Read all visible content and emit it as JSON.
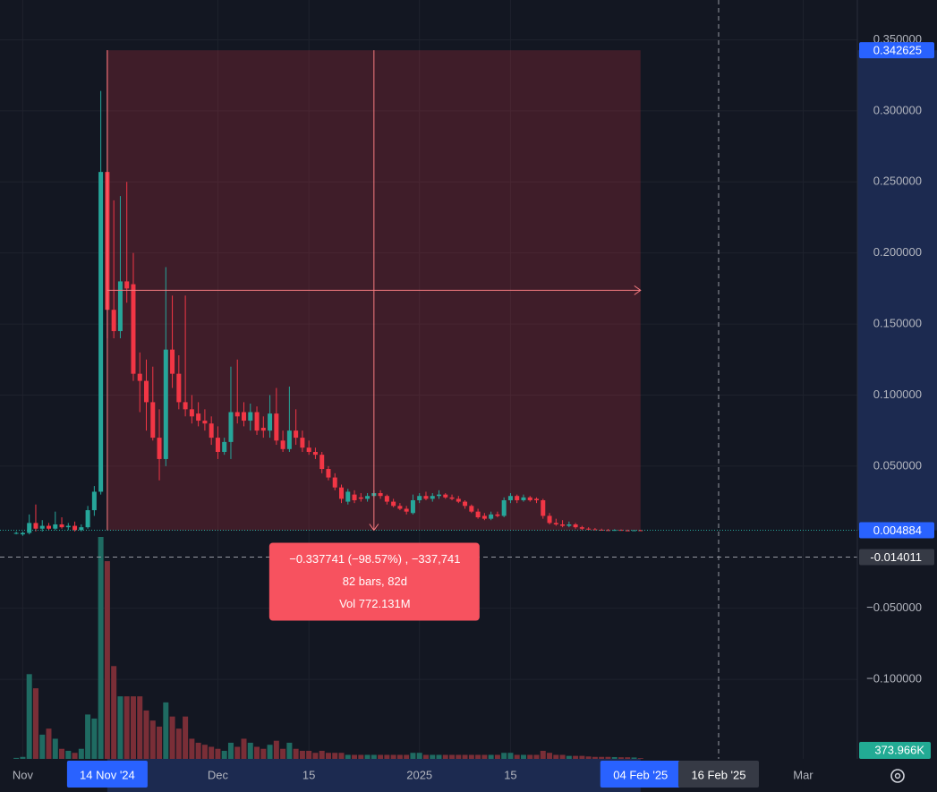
{
  "chart_data": {
    "type": "candlestick",
    "x": [
      "2024-10-31",
      "2024-11-01",
      "2024-11-02",
      "2024-11-03",
      "2024-11-04",
      "2024-11-05",
      "2024-11-06",
      "2024-11-07",
      "2024-11-08",
      "2024-11-09",
      "2024-11-10",
      "2024-11-11",
      "2024-11-12",
      "2024-11-13",
      "2024-11-14",
      "2024-11-15",
      "2024-11-16",
      "2024-11-17",
      "2024-11-18",
      "2024-11-19",
      "2024-11-20",
      "2024-11-21",
      "2024-11-22",
      "2024-11-23",
      "2024-11-24",
      "2024-11-25",
      "2024-11-26",
      "2024-11-27",
      "2024-11-28",
      "2024-11-29",
      "2024-11-30",
      "2024-12-01",
      "2024-12-02",
      "2024-12-03",
      "2024-12-04",
      "2024-12-05",
      "2024-12-06",
      "2024-12-07",
      "2024-12-08",
      "2024-12-09",
      "2024-12-10",
      "2024-12-11",
      "2024-12-12",
      "2024-12-13",
      "2024-12-14",
      "2024-12-15",
      "2024-12-16",
      "2024-12-17",
      "2024-12-18",
      "2024-12-19",
      "2024-12-20",
      "2024-12-21",
      "2024-12-22",
      "2024-12-23",
      "2024-12-24",
      "2024-12-25",
      "2024-12-26",
      "2024-12-27",
      "2024-12-28",
      "2024-12-29",
      "2024-12-30",
      "2024-12-31",
      "2025-01-01",
      "2025-01-02",
      "2025-01-03",
      "2025-01-04",
      "2025-01-05",
      "2025-01-06",
      "2025-01-07",
      "2025-01-08",
      "2025-01-09",
      "2025-01-10",
      "2025-01-11",
      "2025-01-12",
      "2025-01-13",
      "2025-01-14",
      "2025-01-15",
      "2025-01-16",
      "2025-01-17",
      "2025-01-18",
      "2025-01-19",
      "2025-01-20",
      "2025-01-21",
      "2025-01-22",
      "2025-01-23",
      "2025-01-24",
      "2025-01-25",
      "2025-01-26",
      "2025-01-27",
      "2025-01-28",
      "2025-01-29",
      "2025-01-30",
      "2025-01-31",
      "2025-02-01",
      "2025-02-02",
      "2025-02-03",
      "2025-02-04"
    ],
    "ohlc": [
      [
        0.003,
        0.004,
        0.002,
        0.003
      ],
      [
        0.002,
        0.004,
        0.001,
        0.003
      ],
      [
        0.003,
        0.016,
        0.002,
        0.01
      ],
      [
        0.01,
        0.023,
        0.004,
        0.006
      ],
      [
        0.006,
        0.012,
        0.004,
        0.008
      ],
      [
        0.008,
        0.01,
        0.005,
        0.006
      ],
      [
        0.006,
        0.018,
        0.005,
        0.009
      ],
      [
        0.009,
        0.014,
        0.006,
        0.007
      ],
      [
        0.007,
        0.01,
        0.005,
        0.008
      ],
      [
        0.008,
        0.011,
        0.004,
        0.005
      ],
      [
        0.005,
        0.009,
        0.004,
        0.007
      ],
      [
        0.007,
        0.022,
        0.006,
        0.019
      ],
      [
        0.019,
        0.036,
        0.015,
        0.032
      ],
      [
        0.032,
        0.314,
        0.03,
        0.257
      ],
      [
        0.257,
        0.342625,
        0.14,
        0.16
      ],
      [
        0.16,
        0.237,
        0.14,
        0.145
      ],
      [
        0.145,
        0.24,
        0.14,
        0.18
      ],
      [
        0.18,
        0.25,
        0.165,
        0.175
      ],
      [
        0.178,
        0.2,
        0.11,
        0.115
      ],
      [
        0.115,
        0.13,
        0.088,
        0.11
      ],
      [
        0.11,
        0.125,
        0.075,
        0.095
      ],
      [
        0.095,
        0.12,
        0.068,
        0.07
      ],
      [
        0.07,
        0.09,
        0.04,
        0.055
      ],
      [
        0.055,
        0.19,
        0.05,
        0.132
      ],
      [
        0.132,
        0.17,
        0.105,
        0.115
      ],
      [
        0.115,
        0.128,
        0.09,
        0.095
      ],
      [
        0.095,
        0.17,
        0.085,
        0.09
      ],
      [
        0.09,
        0.1,
        0.08,
        0.085
      ],
      [
        0.087,
        0.095,
        0.078,
        0.082
      ],
      [
        0.082,
        0.09,
        0.075,
        0.08
      ],
      [
        0.08,
        0.085,
        0.065,
        0.07
      ],
      [
        0.07,
        0.078,
        0.055,
        0.06
      ],
      [
        0.06,
        0.07,
        0.058,
        0.067
      ],
      [
        0.067,
        0.12,
        0.055,
        0.088
      ],
      [
        0.088,
        0.125,
        0.08,
        0.085
      ],
      [
        0.088,
        0.095,
        0.078,
        0.082
      ],
      [
        0.082,
        0.094,
        0.075,
        0.088
      ],
      [
        0.088,
        0.092,
        0.072,
        0.075
      ],
      [
        0.077,
        0.085,
        0.07,
        0.075
      ],
      [
        0.075,
        0.1,
        0.07,
        0.087
      ],
      [
        0.087,
        0.105,
        0.065,
        0.068
      ],
      [
        0.068,
        0.075,
        0.06,
        0.062
      ],
      [
        0.062,
        0.106,
        0.06,
        0.075
      ],
      [
        0.075,
        0.09,
        0.065,
        0.07
      ],
      [
        0.07,
        0.075,
        0.06,
        0.063
      ],
      [
        0.063,
        0.068,
        0.058,
        0.06
      ],
      [
        0.06,
        0.063,
        0.055,
        0.058
      ],
      [
        0.058,
        0.06,
        0.045,
        0.048
      ],
      [
        0.048,
        0.05,
        0.04,
        0.042
      ],
      [
        0.042,
        0.045,
        0.033,
        0.035
      ],
      [
        0.035,
        0.037,
        0.024,
        0.027
      ],
      [
        0.025,
        0.034,
        0.023,
        0.032
      ],
      [
        0.03,
        0.033,
        0.024,
        0.026
      ],
      [
        0.028,
        0.031,
        0.025,
        0.027
      ],
      [
        0.027,
        0.031,
        0.025,
        0.029
      ],
      [
        0.029,
        0.033,
        0.028,
        0.031
      ],
      [
        0.031,
        0.033,
        0.027,
        0.029
      ],
      [
        0.029,
        0.03,
        0.023,
        0.025
      ],
      [
        0.025,
        0.027,
        0.021,
        0.022
      ],
      [
        0.022,
        0.024,
        0.019,
        0.02
      ],
      [
        0.02,
        0.022,
        0.016,
        0.018
      ],
      [
        0.017,
        0.03,
        0.016,
        0.026
      ],
      [
        0.026,
        0.031,
        0.024,
        0.029
      ],
      [
        0.029,
        0.032,
        0.026,
        0.027
      ],
      [
        0.027,
        0.031,
        0.025,
        0.029
      ],
      [
        0.029,
        0.033,
        0.027,
        0.03
      ],
      [
        0.03,
        0.031,
        0.027,
        0.028
      ],
      [
        0.028,
        0.03,
        0.026,
        0.027
      ],
      [
        0.027,
        0.029,
        0.024,
        0.025
      ],
      [
        0.025,
        0.026,
        0.02,
        0.022
      ],
      [
        0.022,
        0.023,
        0.017,
        0.018
      ],
      [
        0.018,
        0.02,
        0.013,
        0.014
      ],
      [
        0.015,
        0.017,
        0.012,
        0.013
      ],
      [
        0.013,
        0.018,
        0.012,
        0.016
      ],
      [
        0.016,
        0.018,
        0.014,
        0.015
      ],
      [
        0.015,
        0.028,
        0.014,
        0.026
      ],
      [
        0.026,
        0.031,
        0.024,
        0.029
      ],
      [
        0.029,
        0.03,
        0.024,
        0.026
      ],
      [
        0.026,
        0.03,
        0.025,
        0.028
      ],
      [
        0.028,
        0.029,
        0.025,
        0.026
      ],
      [
        0.027,
        0.028,
        0.024,
        0.026
      ],
      [
        0.026,
        0.027,
        0.013,
        0.015
      ],
      [
        0.015,
        0.017,
        0.009,
        0.01
      ],
      [
        0.01,
        0.013,
        0.008,
        0.009
      ],
      [
        0.009,
        0.012,
        0.007,
        0.008
      ],
      [
        0.008,
        0.011,
        0.007,
        0.009
      ],
      [
        0.009,
        0.01,
        0.006,
        0.007
      ],
      [
        0.007,
        0.008,
        0.005,
        0.006
      ],
      [
        0.006,
        0.007,
        0.005,
        0.0055
      ],
      [
        0.0055,
        0.0065,
        0.005,
        0.0052
      ],
      [
        0.0052,
        0.006,
        0.0048,
        0.005
      ],
      [
        0.005,
        0.0058,
        0.0046,
        0.0049
      ],
      [
        0.0049,
        0.0056,
        0.0045,
        0.0051
      ],
      [
        0.0051,
        0.0055,
        0.0046,
        0.0048
      ],
      [
        0.0048,
        0.0053,
        0.0044,
        0.0047
      ],
      [
        0.0047,
        0.0052,
        0.0044,
        0.0049
      ],
      [
        0.0049,
        0.0052,
        0.0046,
        0.004884
      ]
    ],
    "volume": [
      0.5,
      1,
      42,
      35,
      12,
      15,
      10,
      5,
      4,
      3,
      5,
      22,
      20,
      110,
      98,
      46,
      31,
      31,
      31,
      31,
      24,
      19,
      16,
      28,
      21,
      15,
      21,
      10,
      8,
      7,
      6,
      5,
      4,
      8,
      6,
      10,
      8,
      6,
      5,
      7,
      9,
      5,
      8,
      5,
      4,
      4,
      3,
      4,
      3,
      3,
      3,
      2,
      2,
      2,
      2,
      2,
      2,
      2,
      2,
      2,
      2,
      3,
      3,
      2,
      2,
      2,
      2,
      2,
      2,
      2,
      2,
      2,
      2,
      2,
      2,
      3,
      3,
      2,
      2,
      2,
      2,
      4,
      3,
      2,
      2,
      1.5,
      1.5,
      1.5,
      1.2,
      1,
      1,
      1,
      0.9,
      0.8,
      0.8,
      0.7,
      0.373966
    ],
    "volume_label": "373.966K",
    "colors": {
      "up": "#26a69a",
      "down": "#f23645",
      "volume_up": "#1f6b62",
      "volume_down": "#7a2e37"
    },
    "xlim": [
      "2024-10-28T12:00Z",
      "2025-03-09T08:00Z"
    ],
    "ylim": [
      -0.156,
      0.378
    ],
    "yticks": [
      {
        "value": 0.35,
        "label": "0.350000"
      },
      {
        "value": 0.3,
        "label": "0.300000"
      },
      {
        "value": 0.25,
        "label": "0.250000"
      },
      {
        "value": 0.2,
        "label": "0.200000"
      },
      {
        "value": 0.15,
        "label": "0.150000"
      },
      {
        "value": 0.1,
        "label": "0.100000"
      },
      {
        "value": 0.05,
        "label": "0.050000"
      },
      {
        "value": -0.05,
        "label": "−0.050000"
      },
      {
        "value": -0.1,
        "label": "−0.100000"
      }
    ],
    "xticks": [
      {
        "value": "2024-11-01",
        "label": "Nov"
      },
      {
        "value": "2024-12-01",
        "label": "Dec"
      },
      {
        "value": "2024-12-15",
        "label": "15"
      },
      {
        "value": "2025-01-01",
        "label": "2025"
      },
      {
        "value": "2025-01-15",
        "label": "15"
      },
      {
        "value": "2025-03-01",
        "label": "Mar"
      }
    ],
    "grid": true,
    "measure": {
      "start": {
        "value": "2024-11-14",
        "label": "14 Nov '24"
      },
      "end": {
        "value": "2025-02-04",
        "label": "04 Feb '25"
      },
      "from": 0.342625,
      "to": 0.004884,
      "text": [
        "−0.337741 (−98.57%) , −337,741",
        "82 bars, 82d",
        "Vol 772.131M"
      ]
    },
    "crosshair": {
      "x": {
        "value": "2025-02-16",
        "label": "16 Feb '25"
      },
      "y": {
        "value": -0.014011,
        "label": "-0.014011"
      }
    }
  }
}
